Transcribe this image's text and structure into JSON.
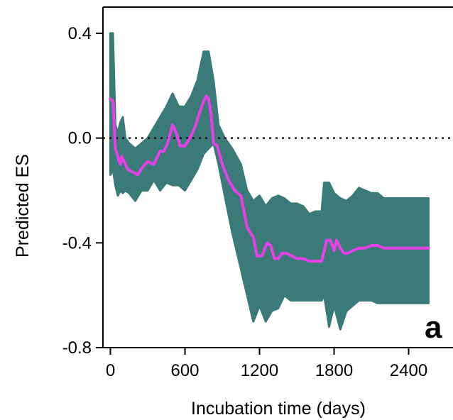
{
  "chart_data": {
    "type": "area",
    "title": "",
    "panel_label": "a",
    "xlabel": "Incubation time (days)",
    "ylabel": "Predicted ES",
    "xlim": [
      -60,
      2780
    ],
    "ylim": [
      -0.8,
      0.5
    ],
    "xticks": [
      0,
      600,
      1200,
      1800,
      2400
    ],
    "xtick_labels": [
      "0",
      "600",
      "1200",
      "1800",
      "2400"
    ],
    "yticks": [
      0.4,
      0.0,
      -0.4,
      -0.8
    ],
    "ytick_labels": [
      "0.4",
      "0.0",
      "-0.4",
      "-0.8"
    ],
    "reference_line": {
      "y": 0.0,
      "style": "dotted"
    },
    "grid": false,
    "colors": {
      "band": "#3a7a78",
      "line": "#e840e8",
      "axis": "#000000"
    },
    "series": [
      {
        "kind": "band",
        "x": [
          0,
          20,
          40,
          60,
          80,
          100,
          120,
          150,
          200,
          250,
          300,
          350,
          400,
          450,
          500,
          550,
          600,
          650,
          700,
          750,
          790,
          830,
          870,
          920,
          980,
          1050,
          1100,
          1150,
          1200,
          1250,
          1300,
          1350,
          1400,
          1450,
          1500,
          1550,
          1600,
          1650,
          1700,
          1720,
          1760,
          1800,
          1850,
          1900,
          1950,
          2000,
          2050,
          2100,
          2150,
          2200,
          2300,
          2400,
          2500,
          2560
        ],
        "upper": [
          0.4,
          0.4,
          0.05,
          0.02,
          0.06,
          0.08,
          0.0,
          -0.02,
          -0.04,
          -0.02,
          0.0,
          0.04,
          0.08,
          0.12,
          0.17,
          0.12,
          0.12,
          0.16,
          0.22,
          0.33,
          0.33,
          0.22,
          0.05,
          0.0,
          -0.04,
          -0.1,
          -0.2,
          -0.24,
          -0.22,
          -0.26,
          -0.23,
          -0.22,
          -0.23,
          -0.25,
          -0.25,
          -0.26,
          -0.29,
          -0.28,
          -0.28,
          -0.17,
          -0.17,
          -0.21,
          -0.23,
          -0.24,
          -0.22,
          -0.19,
          -0.2,
          -0.21,
          -0.21,
          -0.23,
          -0.23,
          -0.23,
          -0.23,
          -0.23
        ],
        "lower": [
          -0.14,
          -0.12,
          -0.18,
          -0.22,
          -0.2,
          -0.21,
          -0.2,
          -0.21,
          -0.24,
          -0.2,
          -0.2,
          -0.16,
          -0.2,
          -0.17,
          -0.18,
          -0.18,
          -0.2,
          -0.16,
          -0.12,
          -0.06,
          -0.04,
          -0.02,
          -0.1,
          -0.22,
          -0.36,
          -0.5,
          -0.6,
          -0.7,
          -0.64,
          -0.7,
          -0.66,
          -0.65,
          -0.6,
          -0.62,
          -0.62,
          -0.62,
          -0.62,
          -0.62,
          -0.62,
          -0.6,
          -0.72,
          -0.64,
          -0.73,
          -0.66,
          -0.64,
          -0.62,
          -0.62,
          -0.62,
          -0.63,
          -0.63,
          -0.63,
          -0.63,
          -0.63,
          -0.63
        ]
      },
      {
        "kind": "line",
        "x": [
          0,
          20,
          40,
          60,
          70,
          80,
          90,
          110,
          140,
          180,
          220,
          260,
          300,
          350,
          400,
          430,
          460,
          500,
          530,
          560,
          600,
          640,
          680,
          720,
          750,
          770,
          790,
          810,
          830,
          860,
          900,
          950,
          1000,
          1050,
          1100,
          1150,
          1180,
          1220,
          1260,
          1290,
          1320,
          1350,
          1380,
          1420,
          1460,
          1500,
          1550,
          1600,
          1650,
          1700,
          1740,
          1770,
          1800,
          1820,
          1850,
          1880,
          1910,
          1950,
          2000,
          2050,
          2100,
          2150,
          2200,
          2300,
          2400,
          2500,
          2560
        ],
        "y": [
          0.15,
          0.14,
          -0.04,
          -0.07,
          -0.09,
          -0.1,
          -0.07,
          -0.09,
          -0.12,
          -0.13,
          -0.14,
          -0.11,
          -0.09,
          -0.1,
          -0.05,
          -0.05,
          -0.02,
          0.05,
          0.02,
          -0.03,
          -0.03,
          0.0,
          0.04,
          0.1,
          0.14,
          0.16,
          0.15,
          0.09,
          -0.02,
          -0.03,
          -0.1,
          -0.16,
          -0.2,
          -0.22,
          -0.34,
          -0.38,
          -0.45,
          -0.45,
          -0.4,
          -0.41,
          -0.46,
          -0.46,
          -0.44,
          -0.44,
          -0.45,
          -0.46,
          -0.46,
          -0.47,
          -0.47,
          -0.47,
          -0.39,
          -0.39,
          -0.43,
          -0.39,
          -0.42,
          -0.44,
          -0.44,
          -0.43,
          -0.42,
          -0.42,
          -0.41,
          -0.41,
          -0.42,
          -0.42,
          -0.42,
          -0.42,
          -0.42
        ]
      }
    ]
  }
}
